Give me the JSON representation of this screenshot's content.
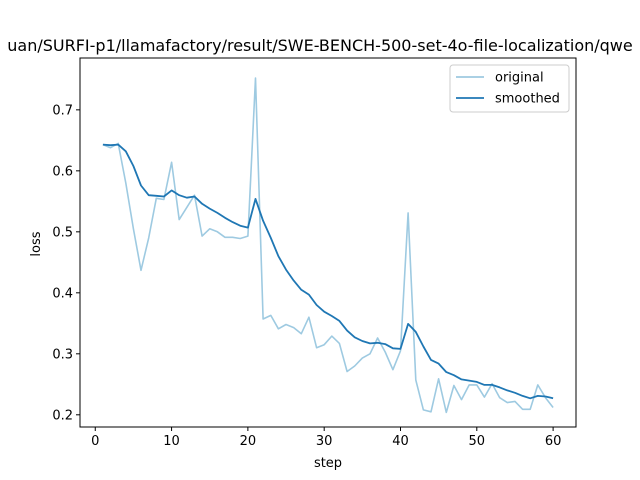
{
  "chart_data": {
    "type": "line",
    "title": "uan/SURFI-p1/llamafactory/result/SWE-BENCH-500-set-4o-file-localization/qwe",
    "xlabel": "step",
    "ylabel": "loss",
    "xlim": [
      -2,
      63
    ],
    "ylim": [
      0.18,
      0.785
    ],
    "xticks": [
      0,
      10,
      20,
      30,
      40,
      50,
      60
    ],
    "yticks": [
      0.2,
      0.3,
      0.4,
      0.5,
      0.6,
      0.7
    ],
    "legend_position": "top-right",
    "x": [
      1,
      2,
      3,
      4,
      5,
      6,
      7,
      8,
      9,
      10,
      11,
      12,
      13,
      14,
      15,
      16,
      17,
      18,
      19,
      20,
      21,
      22,
      23,
      24,
      25,
      26,
      27,
      28,
      29,
      30,
      31,
      32,
      33,
      34,
      35,
      36,
      37,
      38,
      39,
      40,
      41,
      42,
      43,
      44,
      45,
      46,
      47,
      48,
      49,
      50,
      51,
      52,
      53,
      54,
      55,
      56,
      57,
      58,
      59,
      60
    ],
    "series": [
      {
        "name": "original",
        "color": "#9ecae1",
        "values": [
          0.643,
          0.638,
          0.645,
          0.58,
          0.505,
          0.437,
          0.49,
          0.555,
          0.553,
          0.614,
          0.52,
          0.54,
          0.56,
          0.493,
          0.505,
          0.5,
          0.491,
          0.491,
          0.489,
          0.493,
          0.752,
          0.357,
          0.363,
          0.341,
          0.348,
          0.343,
          0.333,
          0.36,
          0.31,
          0.315,
          0.329,
          0.317,
          0.271,
          0.28,
          0.293,
          0.3,
          0.326,
          0.303,
          0.274,
          0.305,
          0.531,
          0.257,
          0.208,
          0.205,
          0.259,
          0.204,
          0.248,
          0.225,
          0.249,
          0.249,
          0.229,
          0.251,
          0.228,
          0.22,
          0.222,
          0.209,
          0.209,
          0.249,
          0.228,
          0.212
        ]
      },
      {
        "name": "smoothed",
        "color": "#1f77b4",
        "values": [
          0.643,
          0.642,
          0.643,
          0.632,
          0.608,
          0.576,
          0.56,
          0.559,
          0.558,
          0.568,
          0.56,
          0.556,
          0.558,
          0.546,
          0.538,
          0.531,
          0.523,
          0.516,
          0.51,
          0.507,
          0.554,
          0.518,
          0.49,
          0.46,
          0.438,
          0.42,
          0.405,
          0.397,
          0.38,
          0.369,
          0.362,
          0.354,
          0.338,
          0.327,
          0.321,
          0.317,
          0.318,
          0.316,
          0.309,
          0.308,
          0.349,
          0.336,
          0.312,
          0.29,
          0.284,
          0.27,
          0.265,
          0.258,
          0.256,
          0.254,
          0.249,
          0.249,
          0.245,
          0.24,
          0.236,
          0.231,
          0.227,
          0.231,
          0.23,
          0.227
        ]
      }
    ]
  }
}
